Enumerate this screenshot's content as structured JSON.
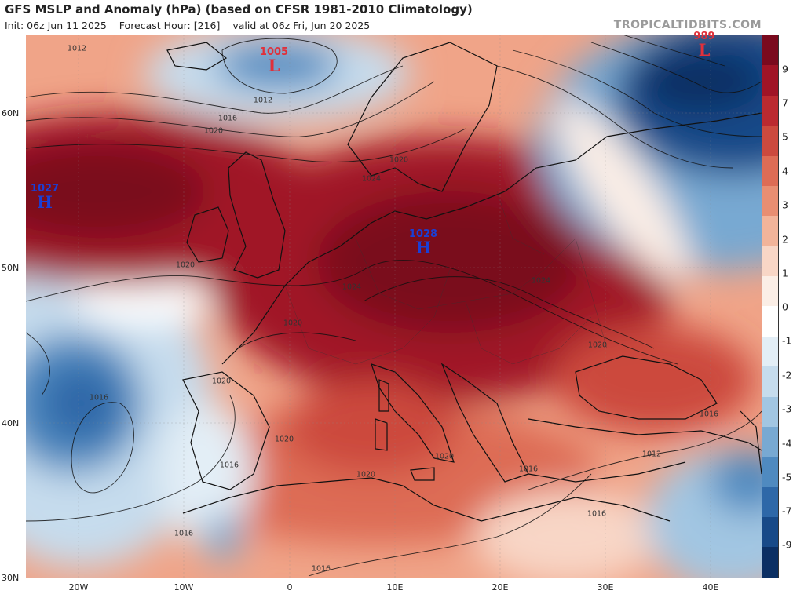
{
  "header": {
    "title": "GFS MSLP and Anomaly (hPa) (based on CFSR 1981-2010 Climatology)",
    "init": "Init: 06z Jun 11 2025",
    "forecast_hour": "Forecast Hour: [216]",
    "valid": "valid at 06z Fri, Jun 20 2025",
    "credit": "TROPICALTIDBITS.COM"
  },
  "axes": {
    "lat_labels": [
      "60N",
      "50N",
      "40N",
      "30N"
    ],
    "lon_labels": [
      "20W",
      "10W",
      "0",
      "10E",
      "20E",
      "30E",
      "40E"
    ]
  },
  "colorbar": {
    "labels": [
      "9",
      "7",
      "5",
      "4",
      "3",
      "2",
      "1",
      "0",
      "-1",
      "-2",
      "-3",
      "-4",
      "-5",
      "-7",
      "-9"
    ],
    "colors": [
      "#7a0a1e",
      "#a01426",
      "#bb2a30",
      "#cc4a3e",
      "#dd6c55",
      "#e88e72",
      "#f2b49a",
      "#f8d6c6",
      "#fbeee6",
      "#ffffff",
      "#e3eef6",
      "#c6dced",
      "#a2c6e2",
      "#78a9d2",
      "#4f8ac0",
      "#2e68a8",
      "#184a88",
      "#0b2f63"
    ]
  },
  "pressure_systems": [
    {
      "type": "H",
      "value": "1027"
    },
    {
      "type": "H",
      "value": "1028"
    },
    {
      "type": "L",
      "value": "1005"
    },
    {
      "type": "L",
      "value": "989"
    }
  ],
  "isobar_labels": [
    "1012",
    "1012",
    "1016",
    "1020",
    "1020",
    "1024",
    "1020",
    "1024",
    "1020",
    "1024",
    "1020",
    "1020",
    "1016",
    "1020",
    "1020",
    "1020",
    "1016",
    "1016",
    "1016",
    "1016",
    "1012",
    "1016",
    "1016"
  ]
}
